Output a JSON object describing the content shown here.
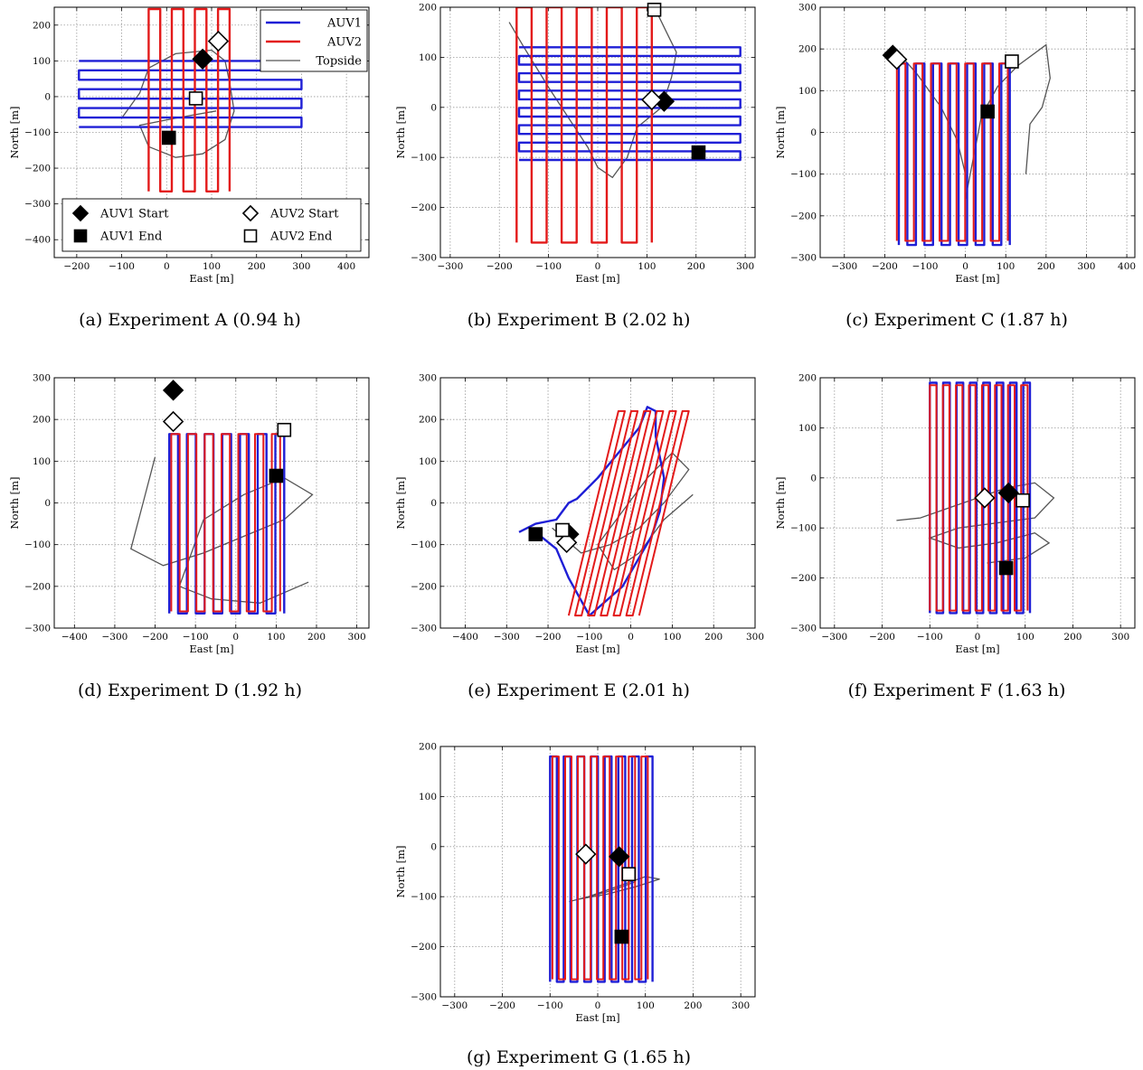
{
  "figure": {
    "legend_lines": [
      {
        "label": "AUV1",
        "color": "#1f1fd6"
      },
      {
        "label": "AUV2",
        "color": "#e31a1a"
      },
      {
        "label": "Topside",
        "color": "#555555"
      }
    ],
    "legend_markers": [
      {
        "label": "AUV1 Start",
        "marker": "diamond-filled"
      },
      {
        "label": "AUV2 Start",
        "marker": "diamond-open"
      },
      {
        "label": "AUV1 End",
        "marker": "square-filled"
      },
      {
        "label": "AUV2 End",
        "marker": "square-open"
      }
    ]
  },
  "chart_data": [
    {
      "type": "line",
      "caption_prefix": "(a) Experiment A (",
      "caption_value": "0.94",
      "caption_suffix": " h)",
      "xlabel": "East [m]",
      "ylabel": "North [m]",
      "xlim": [
        -250,
        450
      ],
      "ylim": [
        -450,
        250
      ],
      "xticks": [
        -200,
        -100,
        0,
        100,
        200,
        300,
        400
      ],
      "yticks": [
        -400,
        -300,
        -200,
        -100,
        0,
        100,
        200
      ],
      "grid": true,
      "auv1": {
        "pattern": "horizontal",
        "x_range": [
          -195,
          300
        ],
        "y_range": [
          -85,
          100
        ],
        "passes": 8,
        "start": [
          80,
          105
        ],
        "end": [
          5,
          -115
        ]
      },
      "auv2": {
        "pattern": "vertical",
        "x_range": [
          -40,
          140
        ],
        "y_range": [
          -265,
          245
        ],
        "passes": 8,
        "start": [
          115,
          155
        ],
        "end": [
          65,
          -5
        ]
      },
      "topside": {
        "points": [
          [
            -100,
            -60
          ],
          [
            -60,
            10
          ],
          [
            -40,
            80
          ],
          [
            20,
            120
          ],
          [
            100,
            130
          ],
          [
            130,
            100
          ],
          [
            140,
            40
          ],
          [
            150,
            -40
          ],
          [
            130,
            -120
          ],
          [
            80,
            -160
          ],
          [
            20,
            -170
          ],
          [
            -40,
            -140
          ],
          [
            -60,
            -80
          ],
          [
            20,
            -60
          ],
          [
            110,
            -40
          ]
        ]
      }
    },
    {
      "type": "line",
      "caption_prefix": "(b) Experiment B (",
      "caption_value": "2.02",
      "caption_suffix": " h)",
      "xlabel": "East [m]",
      "ylabel": "North [m]",
      "xlim": [
        -320,
        320
      ],
      "ylim": [
        -300,
        200
      ],
      "xticks": [
        -300,
        -200,
        -100,
        0,
        100,
        200,
        300
      ],
      "yticks": [
        -300,
        -200,
        -100,
        0,
        100,
        200
      ],
      "grid": true,
      "auv1": {
        "pattern": "horizontal",
        "x_range": [
          -160,
          290
        ],
        "y_range": [
          -105,
          120
        ],
        "passes": 14,
        "start": [
          135,
          12
        ],
        "end": [
          205,
          -90
        ]
      },
      "auv2": {
        "pattern": "vertical",
        "x_range": [
          -165,
          110
        ],
        "y_range": [
          -270,
          200
        ],
        "passes": 10,
        "start": [
          110,
          15
        ],
        "end": [
          115,
          195
        ]
      },
      "topside": {
        "points": [
          [
            -180,
            170
          ],
          [
            -150,
            120
          ],
          [
            -100,
            40
          ],
          [
            -60,
            -20
          ],
          [
            -20,
            -80
          ],
          [
            0,
            -120
          ],
          [
            30,
            -140
          ],
          [
            60,
            -100
          ],
          [
            80,
            -40
          ],
          [
            130,
            0
          ],
          [
            150,
            60
          ],
          [
            160,
            110
          ],
          [
            140,
            150
          ],
          [
            120,
            190
          ],
          [
            110,
            195
          ]
        ]
      }
    },
    {
      "type": "line",
      "caption_prefix": "(c) Experiment C (",
      "caption_value": "1.87",
      "caption_suffix": " h)",
      "xlabel": "East [m]",
      "ylabel": "North [m]",
      "xlim": [
        -360,
        420
      ],
      "ylim": [
        -300,
        300
      ],
      "xticks": [
        -300,
        -200,
        -100,
        0,
        100,
        200,
        300,
        400
      ],
      "yticks": [
        -300,
        -200,
        -100,
        0,
        100,
        200,
        300
      ],
      "grid": true,
      "auv1": {
        "pattern": "vertical",
        "x_range": [
          -165,
          110
        ],
        "y_range": [
          -270,
          165
        ],
        "passes": 14,
        "start": [
          -180,
          185
        ],
        "end": [
          55,
          50
        ]
      },
      "auv2": {
        "pattern": "vertical",
        "x_range": [
          -170,
          105
        ],
        "y_range": [
          -260,
          165
        ],
        "passes": 14,
        "start": [
          -170,
          175
        ],
        "end": [
          115,
          170
        ]
      },
      "topside": {
        "points": [
          [
            -170,
            195
          ],
          [
            -120,
            140
          ],
          [
            -60,
            60
          ],
          [
            -20,
            -20
          ],
          [
            0,
            -100
          ],
          [
            0,
            -160
          ],
          [
            20,
            -60
          ],
          [
            40,
            40
          ],
          [
            80,
            110
          ],
          [
            130,
            160
          ],
          [
            200,
            210
          ],
          [
            210,
            130
          ],
          [
            190,
            60
          ],
          [
            160,
            20
          ],
          [
            150,
            -100
          ]
        ]
      }
    },
    {
      "type": "line",
      "caption_prefix": "(d) Experiment D (",
      "caption_value": "1.92",
      "caption_suffix": " h)",
      "xlabel": "East [m]",
      "ylabel": "North [m]",
      "xlim": [
        -450,
        330
      ],
      "ylim": [
        -300,
        300
      ],
      "xticks": [
        -400,
        -300,
        -200,
        -100,
        0,
        100,
        200,
        300
      ],
      "yticks": [
        -300,
        -200,
        -100,
        0,
        100,
        200,
        300
      ],
      "grid": true,
      "auv1": {
        "pattern": "vertical",
        "x_range": [
          -165,
          120
        ],
        "y_range": [
          -265,
          165
        ],
        "passes": 14,
        "start": [
          -155,
          270
        ],
        "end": [
          100,
          65
        ]
      },
      "auv2": {
        "pattern": "vertical",
        "x_range": [
          -160,
          110
        ],
        "y_range": [
          -260,
          165
        ],
        "passes": 14,
        "start": [
          -155,
          195
        ],
        "end": [
          120,
          175
        ]
      },
      "topside": {
        "points": [
          [
            -200,
            110
          ],
          [
            -230,
            0
          ],
          [
            -260,
            -110
          ],
          [
            -180,
            -150
          ],
          [
            -80,
            -120
          ],
          [
            20,
            -80
          ],
          [
            120,
            -40
          ],
          [
            190,
            20
          ],
          [
            120,
            60
          ],
          [
            20,
            20
          ],
          [
            -80,
            -40
          ],
          [
            -140,
            -200
          ],
          [
            -60,
            -230
          ],
          [
            60,
            -240
          ],
          [
            180,
            -190
          ]
        ]
      }
    },
    {
      "type": "line",
      "caption_prefix": "(e) Experiment E (",
      "caption_value": "2.01",
      "caption_suffix": " h)",
      "xlabel": "East [m]",
      "ylabel": "North [m]",
      "xlim": [
        -460,
        300
      ],
      "ylim": [
        -300,
        300
      ],
      "xticks": [
        -400,
        -300,
        -200,
        -100,
        0,
        100,
        200,
        300
      ],
      "yticks": [
        -300,
        -200,
        -100,
        0,
        100,
        200,
        300
      ],
      "grid": true,
      "auv1": {
        "pattern": "outline",
        "points": [
          [
            -270,
            -70
          ],
          [
            -230,
            -50
          ],
          [
            -180,
            -40
          ],
          [
            -150,
            0
          ],
          [
            -130,
            10
          ],
          [
            -80,
            60
          ],
          [
            -30,
            120
          ],
          [
            20,
            180
          ],
          [
            40,
            230
          ],
          [
            60,
            220
          ],
          [
            60,
            160
          ],
          [
            80,
            60
          ],
          [
            70,
            -20
          ],
          [
            50,
            -80
          ],
          [
            -20,
            -200
          ],
          [
            -100,
            -270
          ],
          [
            -150,
            -180
          ],
          [
            -180,
            -110
          ],
          [
            -230,
            -70
          ]
        ],
        "start": [
          -150,
          -75
        ],
        "end": [
          -230,
          -75
        ]
      },
      "auv2": {
        "pattern": "diagonal",
        "x_range": [
          -150,
          140
        ],
        "y_range": [
          -270,
          220
        ],
        "passes": 12,
        "slant": 120,
        "start": [
          -155,
          -95
        ],
        "end": [
          -165,
          -65
        ]
      },
      "topside": {
        "points": [
          [
            -190,
            -60
          ],
          [
            -120,
            -120
          ],
          [
            -50,
            -100
          ],
          [
            20,
            -60
          ],
          [
            80,
            0
          ],
          [
            140,
            80
          ],
          [
            100,
            120
          ],
          [
            40,
            60
          ],
          [
            -20,
            -20
          ],
          [
            -80,
            -100
          ],
          [
            -40,
            -160
          ],
          [
            20,
            -120
          ],
          [
            80,
            -40
          ],
          [
            150,
            20
          ]
        ]
      }
    },
    {
      "type": "line",
      "caption_prefix": "(f) Experiment F (",
      "caption_value": "1.63",
      "caption_suffix": " h)",
      "xlabel": "East [m]",
      "ylabel": "North [m]",
      "xlim": [
        -330,
        330
      ],
      "ylim": [
        -300,
        200
      ],
      "xticks": [
        -300,
        -200,
        -100,
        0,
        100,
        200,
        300
      ],
      "yticks": [
        -300,
        -200,
        -100,
        0,
        100,
        200
      ],
      "grid": true,
      "auv1": {
        "pattern": "vertical",
        "x_range": [
          -100,
          110
        ],
        "y_range": [
          -270,
          190
        ],
        "passes": 16,
        "start": [
          65,
          -30
        ],
        "end": [
          60,
          -180
        ]
      },
      "auv2": {
        "pattern": "vertical",
        "x_range": [
          -100,
          105
        ],
        "y_range": [
          -265,
          185
        ],
        "passes": 16,
        "start": [
          15,
          -40
        ],
        "end": [
          95,
          -45
        ]
      },
      "topside": {
        "points": [
          [
            -170,
            -85
          ],
          [
            -120,
            -80
          ],
          [
            -60,
            -60
          ],
          [
            0,
            -40
          ],
          [
            60,
            -20
          ],
          [
            120,
            -10
          ],
          [
            160,
            -40
          ],
          [
            120,
            -80
          ],
          [
            40,
            -90
          ],
          [
            -40,
            -100
          ],
          [
            -100,
            -120
          ],
          [
            -40,
            -140
          ],
          [
            40,
            -130
          ],
          [
            120,
            -110
          ],
          [
            150,
            -130
          ],
          [
            100,
            -160
          ],
          [
            20,
            -170
          ]
        ]
      }
    },
    {
      "type": "line",
      "caption_prefix": "(g) Experiment G (",
      "caption_value": "1.65",
      "caption_suffix": " h)",
      "xlabel": "East [m]",
      "ylabel": "North [m]",
      "xlim": [
        -330,
        330
      ],
      "ylim": [
        -300,
        200
      ],
      "xticks": [
        -300,
        -200,
        -100,
        0,
        100,
        200,
        300
      ],
      "yticks": [
        -300,
        -200,
        -100,
        0,
        100,
        200
      ],
      "grid": true,
      "auv1": {
        "pattern": "vertical",
        "x_range": [
          -100,
          115
        ],
        "y_range": [
          -270,
          180
        ],
        "passes": 16,
        "start": [
          45,
          -20
        ],
        "end": [
          50,
          -180
        ]
      },
      "auv2": {
        "pattern": "vertical",
        "x_range": [
          -95,
          105
        ],
        "y_range": [
          -265,
          180
        ],
        "passes": 16,
        "start": [
          -25,
          -15
        ],
        "end": [
          65,
          -55
        ]
      },
      "topside": {
        "points": [
          [
            -60,
            -110
          ],
          [
            -20,
            -100
          ],
          [
            40,
            -80
          ],
          [
            100,
            -60
          ],
          [
            130,
            -65
          ],
          [
            80,
            -80
          ],
          [
            20,
            -95
          ],
          [
            -40,
            -105
          ],
          [
            20,
            -90
          ],
          [
            80,
            -70
          ]
        ]
      }
    }
  ]
}
